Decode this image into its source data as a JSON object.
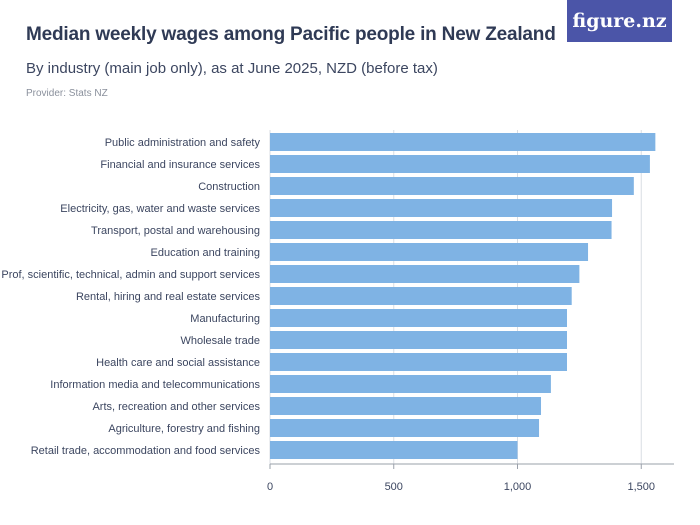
{
  "header": {
    "title": "Median weekly wages among Pacific people in New Zealand",
    "subtitle": "By industry (main job only), as at June 2025, NZD (before tax)",
    "provider": "Provider: Stats NZ"
  },
  "logo": {
    "text": "figure.nz"
  },
  "colors": {
    "bar": "#7fb3e4",
    "grid": "#d9dde3",
    "axis": "#9aa0aa",
    "logo_bg": "#4b55a8"
  },
  "chart_data": {
    "type": "bar",
    "orientation": "horizontal",
    "title": "Median weekly wages among Pacific people in New Zealand",
    "categories": [
      "Public administration and safety",
      "Financial and insurance services",
      "Construction",
      "Electricity, gas, water and waste services",
      "Transport, postal and warehousing",
      "Education and training",
      "Prof, scientific, technical, admin and support services",
      "Rental, hiring and real estate services",
      "Manufacturing",
      "Wholesale trade",
      "Health care and social assistance",
      "Information media and telecommunications",
      "Arts, recreation and other services",
      "Agriculture, forestry and fishing",
      "Retail trade, accommodation and food services"
    ],
    "values": [
      1557,
      1535,
      1470,
      1382,
      1380,
      1285,
      1250,
      1219,
      1200,
      1200,
      1200,
      1135,
      1095,
      1087,
      1000
    ],
    "xlim": [
      0,
      1600
    ],
    "xticks": [
      0,
      500,
      1000,
      1500
    ],
    "xtick_labels": [
      "0",
      "500",
      "1,000",
      "1,500"
    ],
    "grid": true
  }
}
